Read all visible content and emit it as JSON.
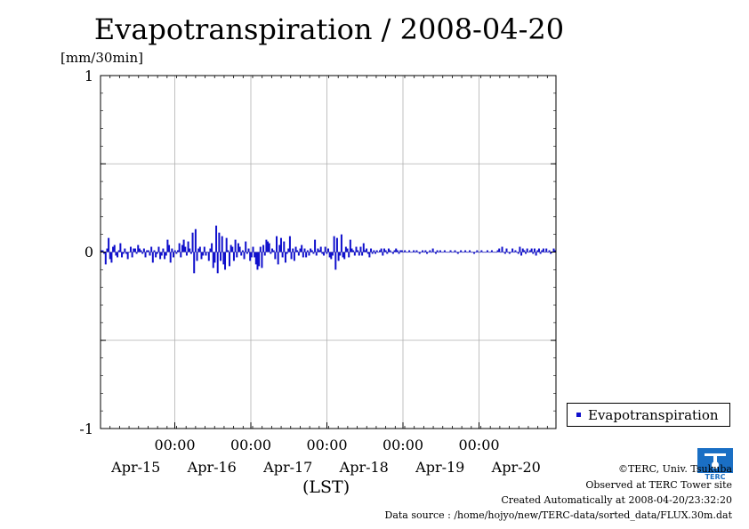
{
  "chart_data": {
    "type": "bar",
    "title": "Evapotranspiration / 2008-04-20",
    "ylabel": "[mm/30min]",
    "xlabel": "(LST)",
    "ylim": [
      -1,
      1
    ],
    "yticks": [
      "1",
      "0",
      "-1"
    ],
    "xtick_times": [
      "00:00",
      "00:00",
      "00:00",
      "00:00",
      "00:00"
    ],
    "xtick_dates": [
      "Apr-15",
      "Apr-16",
      "Apr-17",
      "Apr-18",
      "Apr-19",
      "Apr-20"
    ],
    "grid": true,
    "legend_position": "bottom-right",
    "series": [
      {
        "name": "Evapotranspiration",
        "color": "#1010cc",
        "values": [
          0.01,
          0.01,
          -0.01,
          -0.07,
          0.02,
          0.08,
          -0.04,
          -0.06,
          0.03,
          0.04,
          -0.02,
          -0.03,
          0.01,
          0.05,
          -0.03,
          -0.01,
          0.02,
          -0.01,
          -0.04,
          0.0,
          0.03,
          -0.03,
          0.02,
          0.02,
          -0.01,
          0.04,
          0.02,
          0.01,
          -0.01,
          0.02,
          -0.03,
          0.01,
          0.01,
          -0.02,
          0.03,
          -0.06,
          0.01,
          -0.03,
          -0.01,
          0.03,
          -0.04,
          -0.02,
          0.02,
          -0.04,
          -0.02,
          0.07,
          0.04,
          -0.06,
          0.02,
          -0.03,
          0.01,
          -0.01,
          0.01,
          0.05,
          -0.03,
          0.04,
          0.07,
          0.03,
          -0.02,
          0.06,
          0.02,
          -0.01,
          0.11,
          -0.12,
          0.13,
          -0.05,
          0.02,
          0.03,
          -0.04,
          -0.02,
          0.03,
          -0.02,
          0.0,
          -0.05,
          0.02,
          0.05,
          -0.09,
          -0.06,
          0.15,
          -0.12,
          0.11,
          -0.05,
          0.09,
          -0.07,
          -0.1,
          0.08,
          0.01,
          -0.08,
          0.04,
          0.03,
          -0.05,
          0.07,
          -0.03,
          0.05,
          0.03,
          -0.02,
          0.01,
          -0.04,
          0.06,
          -0.01,
          0.02,
          -0.05,
          -0.03,
          0.03,
          -0.03,
          -0.07,
          -0.1,
          -0.08,
          0.03,
          -0.09,
          0.04,
          -0.02,
          0.07,
          0.06,
          0.05,
          -0.01,
          0.02,
          0.01,
          -0.04,
          0.09,
          -0.07,
          0.04,
          0.08,
          -0.03,
          0.06,
          -0.06,
          -0.01,
          0.02,
          0.09,
          -0.04,
          0.02,
          -0.05,
          0.03,
          0.01,
          -0.02,
          0.02,
          0.04,
          -0.03,
          0.02,
          -0.03,
          0.01,
          -0.02,
          0.02,
          0.01,
          -0.01,
          0.07,
          -0.02,
          0.02,
          0.01,
          0.03,
          -0.01,
          -0.02,
          0.03,
          -0.01,
          0.02,
          -0.03,
          -0.04,
          -0.02,
          0.09,
          -0.1,
          0.08,
          -0.05,
          -0.02,
          0.1,
          -0.03,
          -0.04,
          0.03,
          0.02,
          -0.03,
          0.07,
          0.02,
          0.01,
          -0.02,
          0.03,
          0.01,
          -0.02,
          0.03,
          -0.02,
          0.05,
          0.01,
          0.02,
          -0.01,
          -0.03,
          0.02,
          -0.01,
          0.01,
          -0.01,
          0.01,
          0.0,
          0.01,
          0.02,
          -0.02,
          0.02,
          0.01,
          -0.01,
          0.02,
          0.01,
          0.0,
          -0.01,
          0.01,
          0.02,
          0.01,
          -0.01,
          0.01,
          0.01,
          0.0,
          0.01,
          0.0,
          0.0,
          0.01,
          0.0,
          0.0,
          0.01,
          0.0,
          0.01,
          0.0,
          -0.01,
          0.0,
          0.01,
          0.0,
          0.01,
          -0.01,
          0.0,
          0.01,
          0.0,
          0.02,
          0.0,
          -0.01,
          0.01,
          0.0,
          0.01,
          0.0,
          0.0,
          0.01,
          0.0,
          0.0,
          0.0,
          0.01,
          0.0,
          0.0,
          0.01,
          0.0,
          -0.01,
          0.0,
          0.01,
          0.0,
          0.0,
          0.01,
          0.0,
          0.0,
          0.01,
          0.0,
          0.0,
          -0.01,
          0.0,
          0.01,
          0.0,
          0.0,
          0.01,
          0.0,
          0.0,
          0.0,
          0.01,
          0.0,
          0.0,
          0.01,
          0.0,
          0.0,
          0.0,
          0.01,
          0.02,
          0.0,
          0.03,
          0.0,
          -0.01,
          0.02,
          0.0,
          -0.01,
          0.0,
          0.02,
          0.0,
          0.01,
          0.0,
          -0.01,
          0.03,
          -0.02,
          0.02,
          0.01,
          -0.01,
          0.02,
          0.0,
          0.01,
          0.02,
          -0.01,
          0.02,
          -0.02,
          0.01,
          0.02,
          -0.01,
          0.01,
          0.02,
          0.0,
          0.02,
          0.0,
          0.01,
          -0.01,
          0.0,
          0.02,
          0.01
        ]
      }
    ]
  },
  "credits": {
    "org": "©TERC, Univ. Tsukuba",
    "site": "Observed at TERC Tower site",
    "created": "Created Automatically at 2008-04-20/23:32:20",
    "source": "Data source : /home/hojyo/new/TERC-data/sorted_data/FLUX.30m.dat"
  },
  "logo": {
    "text": "TERC",
    "color": "#1a6fc4"
  }
}
